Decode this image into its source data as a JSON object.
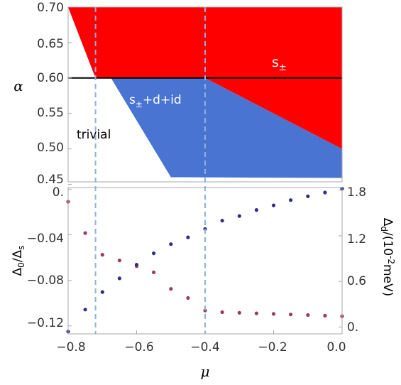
{
  "chart_data": [
    {
      "type": "area",
      "ylabel": "α",
      "xlim": [
        -0.8,
        0.0
      ],
      "ylim": [
        0.45,
        0.7
      ],
      "yticks": [
        "0.70",
        "0.65",
        "0.60",
        "0.55",
        "0.50",
        "0.45"
      ],
      "regions": [
        {
          "name": "s±",
          "color": "#ff0000",
          "label_parts": [
            "s",
            "±"
          ],
          "polygon": [
            [
              -0.8,
              0.7
            ],
            [
              0.0,
              0.7
            ],
            [
              0.0,
              0.5
            ],
            [
              -0.4,
              0.6
            ],
            [
              -0.72,
              0.6
            ]
          ]
        },
        {
          "name": "s±+d+id",
          "color": "#4a74d2",
          "label_parts": [
            "s",
            "±",
            "+d+id"
          ],
          "polygon": [
            [
              -0.8,
              0.7
            ],
            [
              -0.72,
              0.6
            ],
            [
              -0.4,
              0.6
            ],
            [
              0.0,
              0.5
            ],
            [
              0.0,
              0.459
            ],
            [
              -0.5,
              0.46
            ]
          ]
        },
        {
          "name": "trivial",
          "color": "#ffffff",
          "label": "trivial"
        }
      ],
      "hline": 0.6,
      "vlines": [
        -0.72,
        -0.4
      ]
    },
    {
      "type": "scatter",
      "xlabel": "μ",
      "ylabel_left": {
        "main": "Δ",
        "sub0": "0",
        "slash": "/Δ",
        "sub1": "s"
      },
      "ylabel_right": {
        "main": "Δ",
        "sub": "d",
        "rest": "/(10",
        "sup": "-2",
        "unit": "meV)"
      },
      "xlim": [
        -0.8,
        0.0
      ],
      "xticks": [
        "−0.8",
        "−0.6",
        "−0.4",
        "−0.2",
        "0.0"
      ],
      "ylim_left": [
        -0.125,
        0.0
      ],
      "yticks_left": [
        "0.",
        "−0.04",
        "−0.08",
        "−0.12"
      ],
      "ylim_right": [
        0.0,
        1.8
      ],
      "yticks_right": [
        "1.8",
        "1.2",
        "0.6",
        "0."
      ],
      "vlines": [
        -0.72,
        -0.4
      ],
      "series": [
        {
          "axis": "left",
          "color": "#9b3b5e",
          "x": [
            -0.8,
            -0.75,
            -0.7,
            -0.65,
            -0.6,
            -0.55,
            -0.5,
            -0.45,
            -0.4,
            -0.35,
            -0.3,
            -0.25,
            -0.2,
            -0.15,
            -0.1,
            -0.05,
            0.0
          ],
          "y": [
            -0.011,
            -0.0385,
            -0.0575,
            -0.0625,
            -0.0675,
            -0.073,
            -0.0875,
            -0.0955,
            -0.1065,
            -0.108,
            -0.1085,
            -0.109,
            -0.1095,
            -0.11,
            -0.1105,
            -0.111,
            -0.1115
          ]
        },
        {
          "axis": "right",
          "color": "#2e2f8a",
          "x": [
            -0.8,
            -0.75,
            -0.7,
            -0.65,
            -0.6,
            -0.55,
            -0.5,
            -0.45,
            -0.4,
            -0.35,
            -0.3,
            -0.25,
            -0.2,
            -0.15,
            -0.1,
            -0.05,
            0.0
          ],
          "y": [
            -0.06,
            0.23,
            0.46,
            0.64,
            0.82,
            0.97,
            1.09,
            1.18,
            1.29,
            1.4,
            1.46,
            1.54,
            1.6,
            1.67,
            1.72,
            1.77,
            1.82
          ]
        }
      ]
    }
  ]
}
